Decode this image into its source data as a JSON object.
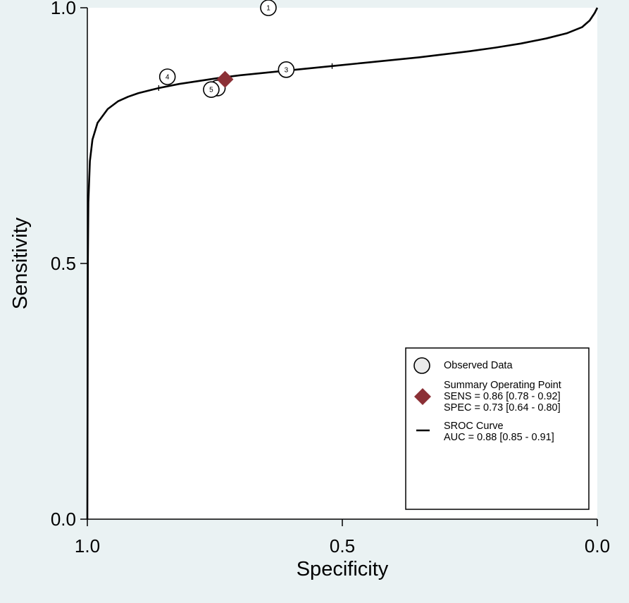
{
  "chart_data": {
    "type": "scatter",
    "xlabel": "Specificity",
    "ylabel": "Sensitivity",
    "x_reversed": true,
    "xlim": [
      1.0,
      0.0
    ],
    "ylim": [
      0.0,
      1.0
    ],
    "x_ticks": [
      1.0,
      0.5,
      0.0
    ],
    "y_ticks": [
      0.0,
      0.5,
      1.0
    ],
    "x_tick_labels": [
      "1.0",
      "0.5",
      "0.0"
    ],
    "y_tick_labels": [
      "0.0",
      "0.5",
      "1.0"
    ],
    "grid": false,
    "legend_position": "bottom-right",
    "studies": [
      {
        "label": "1",
        "specificity": 0.645,
        "sensitivity": 1.0
      },
      {
        "label": "2",
        "specificity": 0.745,
        "sensitivity": 0.843
      },
      {
        "label": "3",
        "specificity": 0.61,
        "sensitivity": 0.879
      },
      {
        "label": "4",
        "specificity": 0.843,
        "sensitivity": 0.865
      },
      {
        "label": "5",
        "specificity": 0.757,
        "sensitivity": 0.84
      }
    ],
    "summary_point": {
      "specificity": 0.73,
      "sensitivity": 0.86,
      "color": "#8b3036"
    },
    "sroc_curve": {
      "points": [
        [
          1.0,
          0.0
        ],
        [
          0.999,
          0.5
        ],
        [
          0.998,
          0.62
        ],
        [
          0.995,
          0.7
        ],
        [
          0.99,
          0.742
        ],
        [
          0.98,
          0.775
        ],
        [
          0.96,
          0.802
        ],
        [
          0.94,
          0.817
        ],
        [
          0.92,
          0.826
        ],
        [
          0.9,
          0.833
        ],
        [
          0.86,
          0.843
        ],
        [
          0.82,
          0.851
        ],
        [
          0.78,
          0.857
        ],
        [
          0.74,
          0.863
        ],
        [
          0.7,
          0.868
        ],
        [
          0.65,
          0.873
        ],
        [
          0.6,
          0.878
        ],
        [
          0.55,
          0.883
        ],
        [
          0.5,
          0.888
        ],
        [
          0.45,
          0.893
        ],
        [
          0.4,
          0.898
        ],
        [
          0.35,
          0.903
        ],
        [
          0.3,
          0.909
        ],
        [
          0.25,
          0.915
        ],
        [
          0.2,
          0.922
        ],
        [
          0.15,
          0.93
        ],
        [
          0.1,
          0.94
        ],
        [
          0.06,
          0.95
        ],
        [
          0.03,
          0.962
        ],
        [
          0.015,
          0.975
        ],
        [
          0.005,
          0.99
        ],
        [
          0.0,
          1.0
        ]
      ],
      "ci_markers": [
        {
          "specificity": 0.86,
          "sensitivity": 0.843
        },
        {
          "specificity": 0.52,
          "sensitivity": 0.886
        }
      ]
    },
    "legend": [
      {
        "symbol": "circle",
        "lines": [
          "Observed Data"
        ]
      },
      {
        "symbol": "diamond",
        "lines": [
          "Summary Operating Point",
          "SENS = 0.86 [0.78 - 0.92]",
          "SPEC = 0.73 [0.64 - 0.80]"
        ]
      },
      {
        "symbol": "line",
        "lines": [
          "SROC Curve",
          "AUC = 0.88 [0.85 - 0.91]"
        ]
      }
    ],
    "colors": {
      "plot_background": "#ffffff",
      "outer_background": "#eaf2f3",
      "marker_fill": "#ebebeb",
      "line": "#000000"
    }
  }
}
